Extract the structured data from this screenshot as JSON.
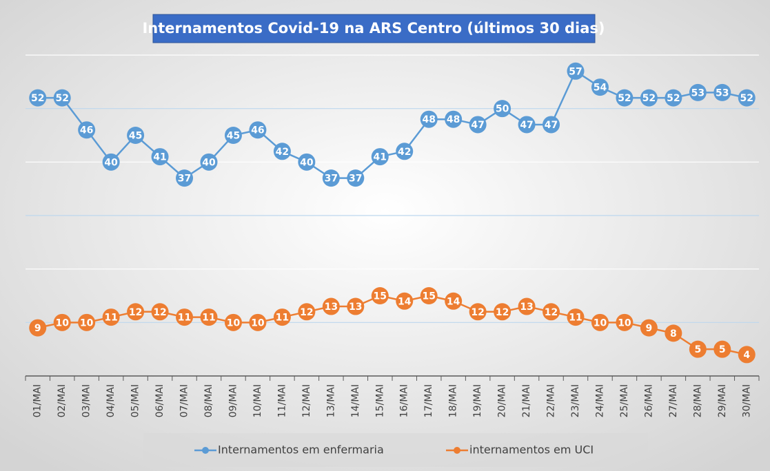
{
  "chart_data": {
    "type": "line",
    "title": "Internamentos Covid-19 na ARS Centro (últimos 30 dias)",
    "categories": [
      "01/MAI",
      "02/MAI",
      "03/MAI",
      "04/MAI",
      "05/MAI",
      "06/MAI",
      "07/MAI",
      "08/MAI",
      "09/MAI",
      "10/MAI",
      "11/MAI",
      "12/MAI",
      "13/MAI",
      "14/MAI",
      "15/MAI",
      "16/MAI",
      "17/MAI",
      "18/MAI",
      "19/MAI",
      "20/MAI",
      "21/MAI",
      "22/MAI",
      "23/MAI",
      "24/MAI",
      "25/MAI",
      "26/MAI",
      "27/MAI",
      "28/MAI",
      "29/MAI",
      "30/MAI"
    ],
    "series": [
      {
        "name": "Internamentos em enfermaria",
        "color": "#5b9bd5",
        "values": [
          52,
          52,
          46,
          40,
          45,
          41,
          37,
          40,
          45,
          46,
          42,
          40,
          37,
          37,
          41,
          42,
          48,
          48,
          47,
          50,
          47,
          47,
          57,
          54,
          52,
          52,
          52,
          53,
          53,
          52
        ]
      },
      {
        "name": "internamentos em UCI",
        "color": "#ed7d31",
        "values": [
          9,
          10,
          10,
          11,
          12,
          12,
          11,
          11,
          10,
          10,
          11,
          12,
          13,
          13,
          15,
          14,
          15,
          14,
          12,
          12,
          13,
          12,
          11,
          10,
          10,
          9,
          8,
          5,
          5,
          4
        ]
      }
    ],
    "ylim": [
      0,
      60
    ],
    "yticks": [
      0,
      10,
      20,
      30,
      40,
      50,
      60
    ],
    "grid": true,
    "legend": "bottom"
  }
}
